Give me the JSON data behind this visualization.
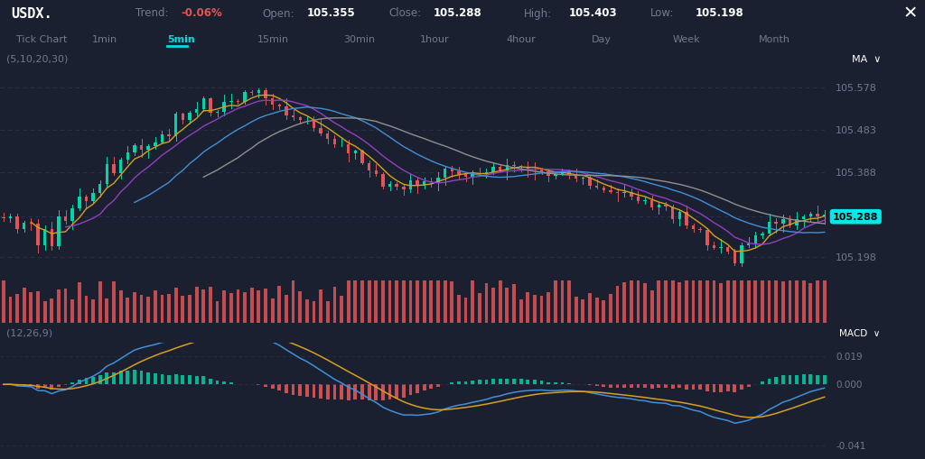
{
  "bg_color": "#1b2030",
  "header_bg": "#141824",
  "tab_bg": "#1b2030",
  "title": "USDX.",
  "trend_label": "Trend:",
  "trend_value": "-0.06%",
  "open_label": "Open:",
  "open_value": "105.355",
  "close_label": "Close:",
  "close_value": "105.288",
  "high_label": "High:",
  "high_value": "105.403",
  "low_label": "Low:",
  "low_value": "105.198",
  "timeframes": [
    "Tick Chart",
    "1min",
    "5min",
    "15min",
    "30min",
    "1hour",
    "4hour",
    "Day",
    "Week",
    "Month"
  ],
  "active_timeframe": "5min",
  "ma_label": "(5,10,20,30)",
  "macd_label": "(12,26,9)",
  "price_levels": [
    105.578,
    105.483,
    105.388,
    105.198
  ],
  "close_price": 105.288,
  "price_min": 105.155,
  "price_max": 105.62,
  "dashed_line_color": "#2e3650",
  "candle_up_color": "#00d4a8",
  "candle_down_color": "#e05555",
  "ma5_color": "#d4a020",
  "ma10_color": "#9040c0",
  "ma20_color": "#4090d8",
  "ma30_color": "#909090",
  "macd_line_color": "#4090d8",
  "signal_line_color": "#d4a020",
  "macd_up_color": "#00c8a0",
  "macd_down_color": "#e05555",
  "close_label_bg": "#00e8e8",
  "close_label_color": "#000000",
  "btn_bg": "#252d42",
  "trend_color": "#e05555",
  "label_color": "#707a90",
  "value_color": "#ffffff",
  "macd_levels": [
    0.019,
    0.0,
    -0.041
  ],
  "macd_min": -0.05,
  "macd_max": 0.028
}
